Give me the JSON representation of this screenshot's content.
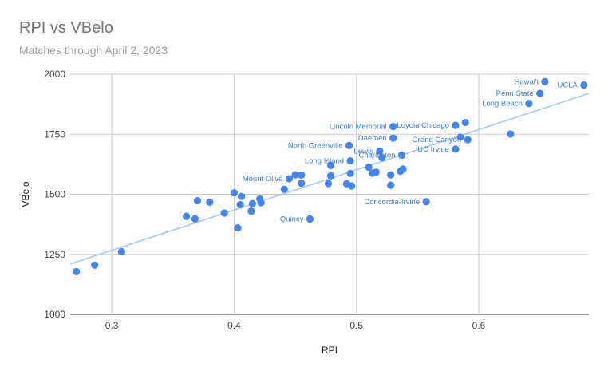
{
  "chart_data": {
    "type": "scatter",
    "title": "RPI vs VBelo",
    "subtitle": "Matches through April 2, 2023",
    "xlabel": "RPI",
    "ylabel": "VBelo",
    "xlim": [
      0.266,
      0.69
    ],
    "ylim": [
      1000,
      2000
    ],
    "xticks": [
      0.3,
      0.4,
      0.5,
      0.6
    ],
    "xtick_labels": [
      "0.3",
      "0.4",
      "0.5",
      "0.6"
    ],
    "yticks": [
      1000,
      1250,
      1500,
      1750,
      2000
    ],
    "ytick_labels": [
      "1000",
      "1250",
      "1500",
      "1750",
      "2000"
    ],
    "grid": true,
    "point_color": "#4285f4",
    "trendline_color": "#a8c7fa",
    "trendline": {
      "x": [
        0.266,
        0.69
      ],
      "y": [
        1210,
        1920
      ]
    },
    "points": [
      {
        "x": 0.271,
        "y": 1178,
        "label": ""
      },
      {
        "x": 0.286,
        "y": 1205,
        "label": ""
      },
      {
        "x": 0.308,
        "y": 1261,
        "label": ""
      },
      {
        "x": 0.361,
        "y": 1408,
        "label": ""
      },
      {
        "x": 0.368,
        "y": 1398,
        "label": ""
      },
      {
        "x": 0.37,
        "y": 1473,
        "label": ""
      },
      {
        "x": 0.38,
        "y": 1467,
        "label": ""
      },
      {
        "x": 0.392,
        "y": 1422,
        "label": ""
      },
      {
        "x": 0.4,
        "y": 1506,
        "label": ""
      },
      {
        "x": 0.403,
        "y": 1360,
        "label": ""
      },
      {
        "x": 0.405,
        "y": 1457,
        "label": ""
      },
      {
        "x": 0.406,
        "y": 1491,
        "label": ""
      },
      {
        "x": 0.414,
        "y": 1430,
        "label": ""
      },
      {
        "x": 0.415,
        "y": 1461,
        "label": ""
      },
      {
        "x": 0.421,
        "y": 1481,
        "label": ""
      },
      {
        "x": 0.422,
        "y": 1465,
        "label": ""
      },
      {
        "x": 0.441,
        "y": 1521,
        "label": ""
      },
      {
        "x": 0.445,
        "y": 1565,
        "label": "Mount Olive"
      },
      {
        "x": 0.45,
        "y": 1581,
        "label": ""
      },
      {
        "x": 0.455,
        "y": 1580,
        "label": ""
      },
      {
        "x": 0.455,
        "y": 1546,
        "label": ""
      },
      {
        "x": 0.462,
        "y": 1397,
        "label": "Quincy"
      },
      {
        "x": 0.477,
        "y": 1545,
        "label": ""
      },
      {
        "x": 0.479,
        "y": 1620,
        "label": ""
      },
      {
        "x": 0.479,
        "y": 1577,
        "label": ""
      },
      {
        "x": 0.492,
        "y": 1544,
        "label": ""
      },
      {
        "x": 0.494,
        "y": 1703,
        "label": "North Greenville"
      },
      {
        "x": 0.495,
        "y": 1639,
        "label": "Long Island"
      },
      {
        "x": 0.495,
        "y": 1587,
        "label": ""
      },
      {
        "x": 0.496,
        "y": 1535,
        "label": ""
      },
      {
        "x": 0.51,
        "y": 1613,
        "label": ""
      },
      {
        "x": 0.513,
        "y": 1588,
        "label": ""
      },
      {
        "x": 0.516,
        "y": 1592,
        "label": ""
      },
      {
        "x": 0.519,
        "y": 1680,
        "label": "Lewis"
      },
      {
        "x": 0.521,
        "y": 1652,
        "label": ""
      },
      {
        "x": 0.528,
        "y": 1581,
        "label": ""
      },
      {
        "x": 0.528,
        "y": 1538,
        "label": ""
      },
      {
        "x": 0.53,
        "y": 1782,
        "label": "Lincoln Memorial"
      },
      {
        "x": 0.53,
        "y": 1734,
        "label": "Daemen"
      },
      {
        "x": 0.536,
        "y": 1596,
        "label": ""
      },
      {
        "x": 0.537,
        "y": 1663,
        "label": "Charleston"
      },
      {
        "x": 0.538,
        "y": 1605,
        "label": ""
      },
      {
        "x": 0.557,
        "y": 1469,
        "label": "Concordia-Irvine"
      },
      {
        "x": 0.581,
        "y": 1787,
        "label": "Loyola Chicago"
      },
      {
        "x": 0.581,
        "y": 1688,
        "label": "UC Irvine"
      },
      {
        "x": 0.585,
        "y": 1738,
        "label": ""
      },
      {
        "x": 0.589,
        "y": 1799,
        "label": ""
      },
      {
        "x": 0.591,
        "y": 1727,
        "label": "Grand Canyon"
      },
      {
        "x": 0.626,
        "y": 1751,
        "label": ""
      },
      {
        "x": 0.641,
        "y": 1878,
        "label": "Long Beach"
      },
      {
        "x": 0.65,
        "y": 1920,
        "label": "Penn State"
      },
      {
        "x": 0.654,
        "y": 1969,
        "label": "Hawai'i"
      },
      {
        "x": 0.686,
        "y": 1955,
        "label": "UCLA"
      }
    ]
  }
}
